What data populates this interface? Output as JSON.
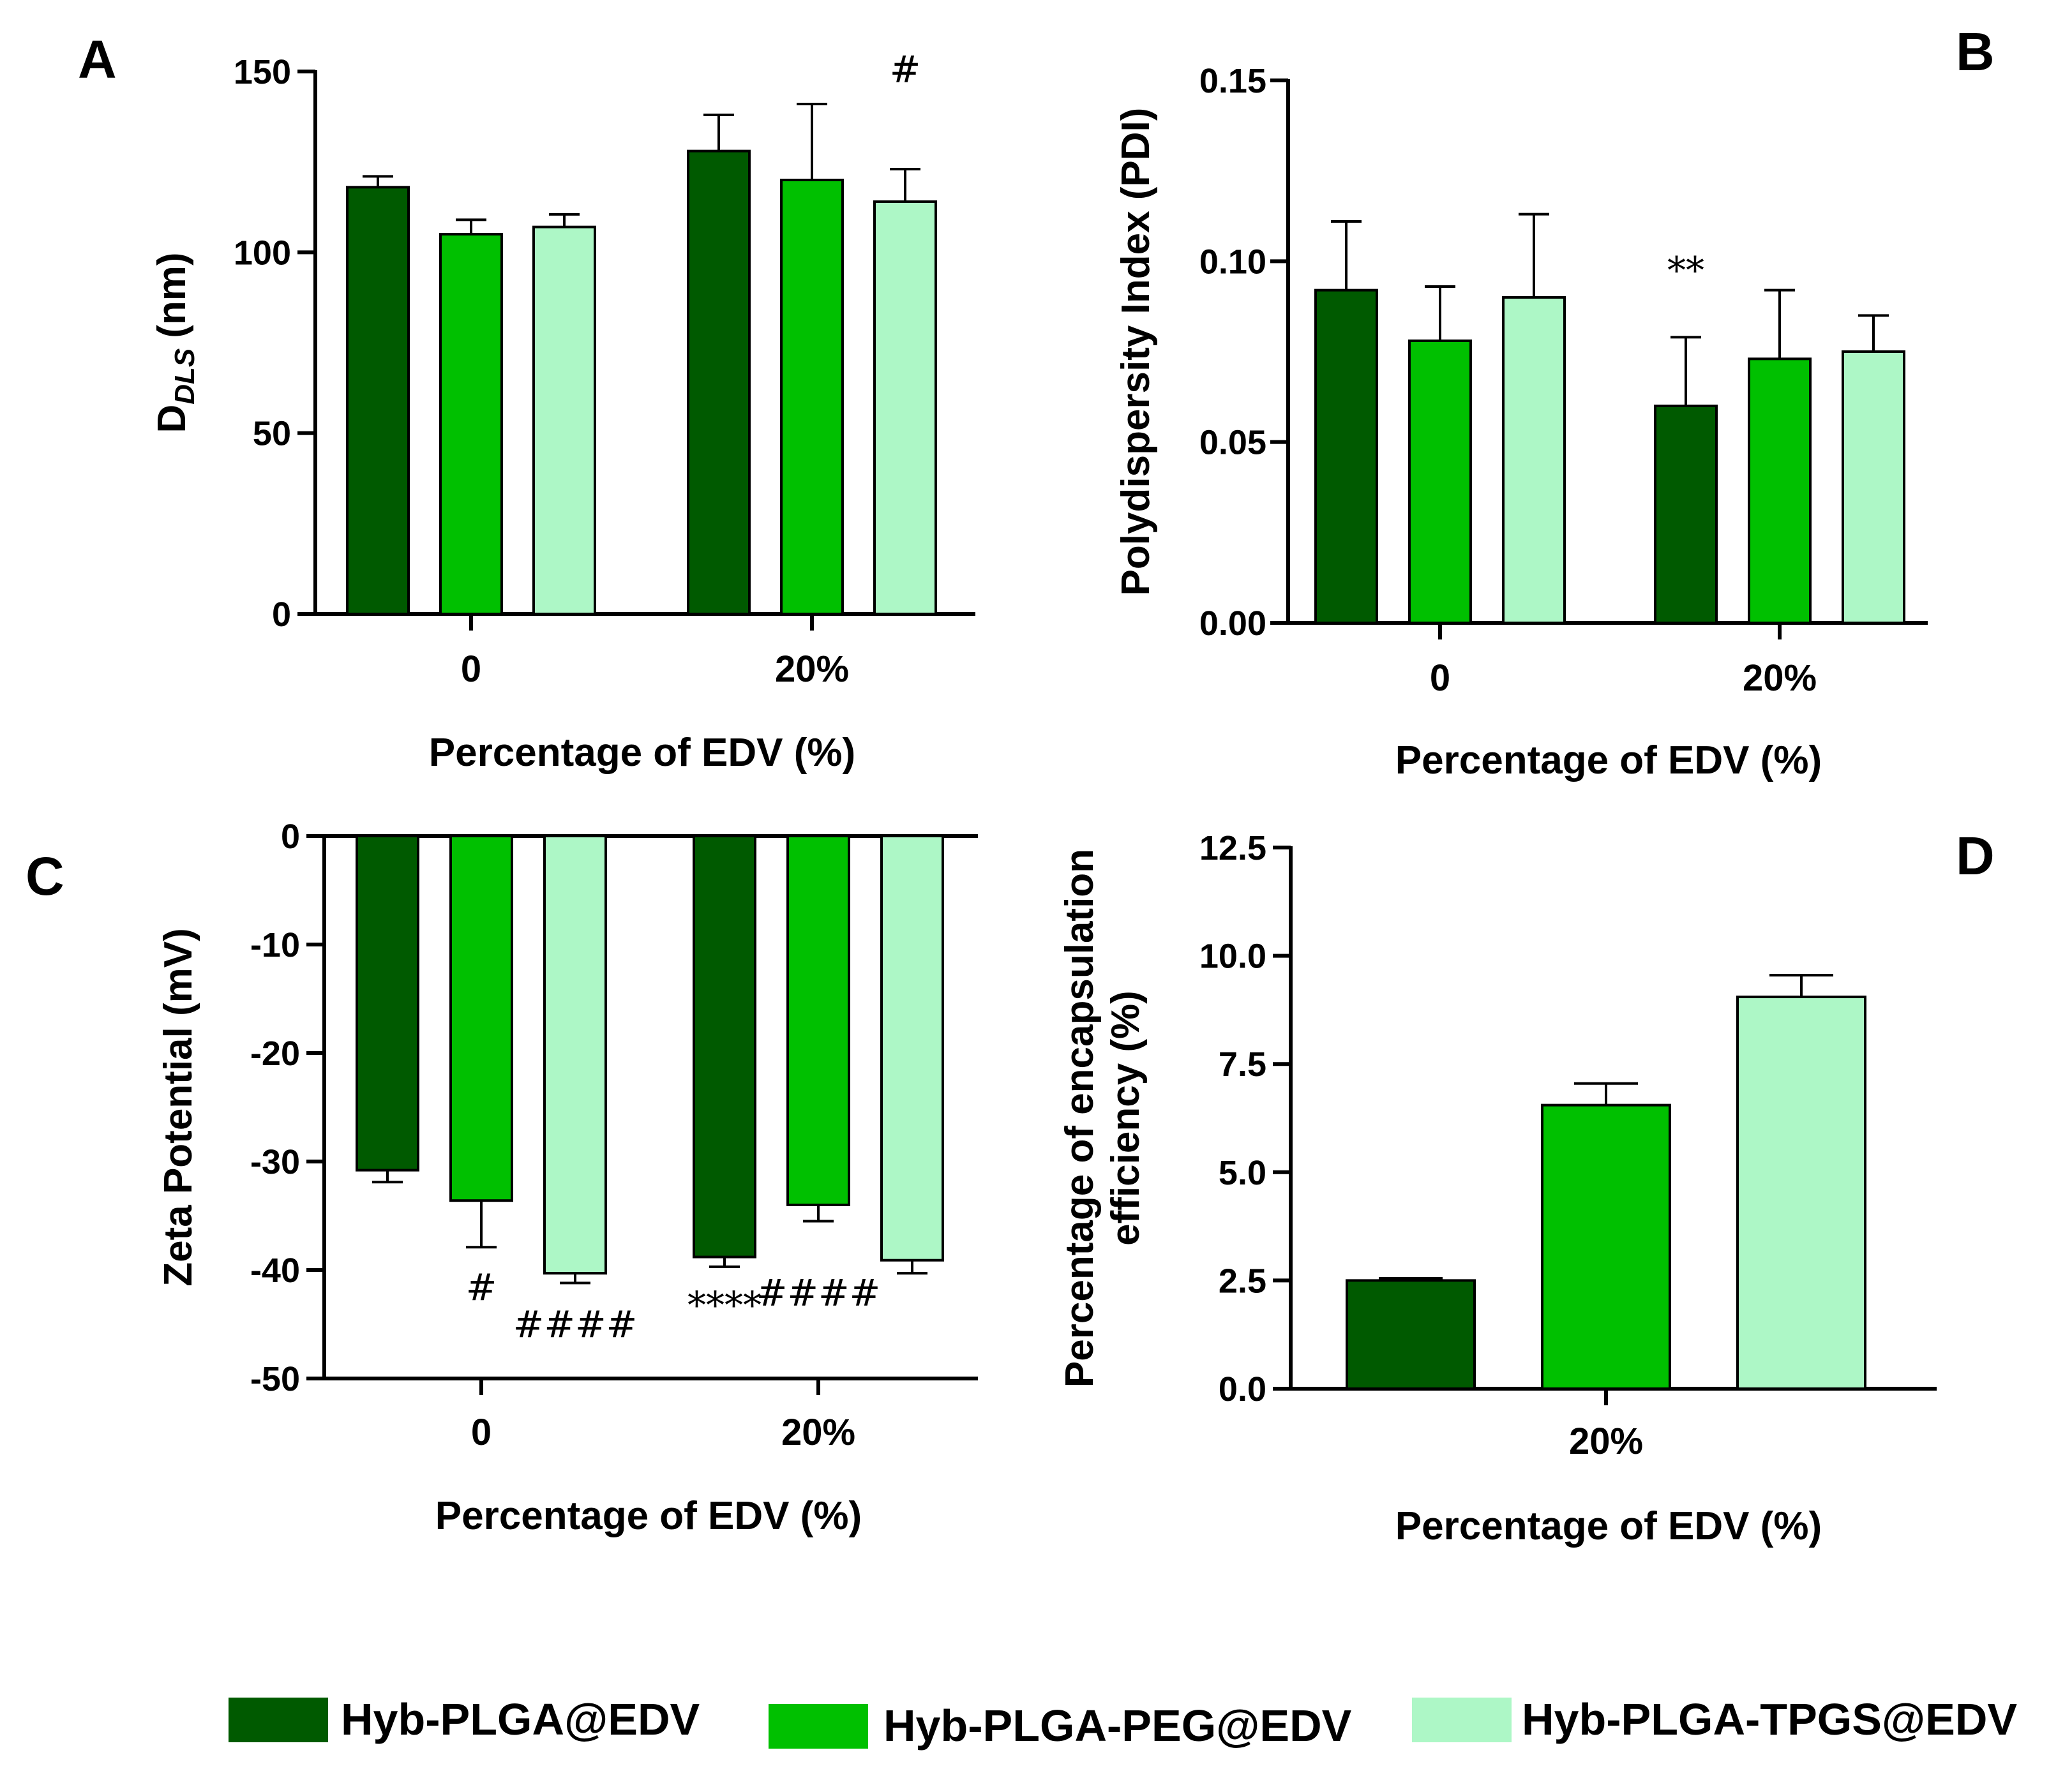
{
  "legend": [
    {
      "label": "Hyb-PLGA@EDV",
      "color": "#005a00"
    },
    {
      "label": "Hyb-PLGA-PEG@EDV",
      "color": "#00c000"
    },
    {
      "label": "Hyb-PLGA-TPGS@EDV",
      "color": "#adf7c6"
    }
  ],
  "chart_data": [
    {
      "panel": "A",
      "type": "bar",
      "ylabel": "D_DLS (nm)",
      "ylabel_main": "D",
      "ylabel_sub": "DLS",
      "ylabel_unit": "(nm)",
      "xlabel": "Percentage of EDV (%)",
      "categories": [
        "0",
        "20%"
      ],
      "ylim": [
        0,
        150
      ],
      "yticks": [
        0,
        50,
        100,
        150
      ],
      "ytick_labels": [
        "0",
        "50",
        "100",
        "150"
      ],
      "series": [
        {
          "name": "Hyb-PLGA@EDV",
          "values": [
            118,
            128
          ],
          "errors": [
            3,
            10
          ]
        },
        {
          "name": "Hyb-PLGA-PEG@EDV",
          "values": [
            105,
            120
          ],
          "errors": [
            4,
            21
          ]
        },
        {
          "name": "Hyb-PLGA-TPGS@EDV",
          "values": [
            107,
            114
          ],
          "errors": [
            3.5,
            9
          ]
        }
      ],
      "annotations": [
        {
          "text": "#",
          "category": 1,
          "series": 2,
          "at_value": 147
        }
      ]
    },
    {
      "panel": "B",
      "type": "bar",
      "ylabel": "Polydispersity Index (PDI)",
      "xlabel": "Percentage of EDV (%)",
      "categories": [
        "0",
        "20%"
      ],
      "ylim": [
        0,
        0.15
      ],
      "yticks": [
        0,
        0.05,
        0.1,
        0.15
      ],
      "ytick_labels": [
        "0.00",
        "0.05",
        "0.10",
        "0.15"
      ],
      "series": [
        {
          "name": "Hyb-PLGA@EDV",
          "values": [
            0.092,
            0.06
          ],
          "errors": [
            0.019,
            0.019
          ]
        },
        {
          "name": "Hyb-PLGA-PEG@EDV",
          "values": [
            0.078,
            0.073
          ],
          "errors": [
            0.015,
            0.019
          ]
        },
        {
          "name": "Hyb-PLGA-TPGS@EDV",
          "values": [
            0.09,
            0.075
          ],
          "errors": [
            0.023,
            0.01
          ]
        }
      ],
      "annotations": [
        {
          "text": "**",
          "category": 1,
          "series": 0,
          "at_value": 0.094
        }
      ]
    },
    {
      "panel": "C",
      "type": "bar",
      "ylabel": "Zeta Potential (mV)",
      "xlabel": "Percentage of EDV (%)",
      "categories": [
        "0",
        "20%"
      ],
      "ylim": [
        -50,
        0
      ],
      "yticks": [
        0,
        -10,
        -20,
        -30,
        -40,
        -50
      ],
      "ytick_labels": [
        "0",
        "-10",
        "-20",
        "-30",
        "-40",
        "-50"
      ],
      "series": [
        {
          "name": "Hyb-PLGA@EDV",
          "values": [
            -30.8,
            -38.8
          ],
          "errors": [
            1.1,
            0.9
          ]
        },
        {
          "name": "Hyb-PLGA-PEG@EDV",
          "values": [
            -33.6,
            -34
          ],
          "errors": [
            4.3,
            1.5
          ]
        },
        {
          "name": "Hyb-PLGA-TPGS@EDV",
          "values": [
            -40.3,
            -39.1
          ],
          "errors": [
            0.9,
            1.2
          ]
        }
      ],
      "annotations": [
        {
          "text": "#",
          "category": 0,
          "series": 1,
          "at_value": -42.8
        },
        {
          "text": "####",
          "category": 0,
          "series": 2,
          "at_value": -46.2
        },
        {
          "text": "****",
          "category": 1,
          "series": 0,
          "at_value": -44.4
        },
        {
          "text": "####",
          "category": 1,
          "series": 1,
          "at_value": -43.3
        }
      ]
    },
    {
      "panel": "D",
      "type": "bar",
      "ylabel_lines": [
        "Percentage of encapsulation",
        "efficiency (%)"
      ],
      "xlabel": "Percentage of EDV (%)",
      "categories": [
        "20%"
      ],
      "ylim": [
        0,
        12.5
      ],
      "yticks": [
        0,
        2.5,
        5,
        7.5,
        10,
        12.5
      ],
      "ytick_labels": [
        "0.0",
        "2.5",
        "5.0",
        "7.5",
        "10.0",
        "12.5"
      ],
      "series": [
        {
          "name": "Hyb-PLGA@EDV",
          "values": [
            2.5
          ],
          "errors": [
            0.05
          ]
        },
        {
          "name": "Hyb-PLGA-PEG@EDV",
          "values": [
            6.55
          ],
          "errors": [
            0.5
          ]
        },
        {
          "name": "Hyb-PLGA-TPGS@EDV",
          "values": [
            9.05
          ],
          "errors": [
            0.5
          ]
        }
      ],
      "annotations": []
    }
  ]
}
